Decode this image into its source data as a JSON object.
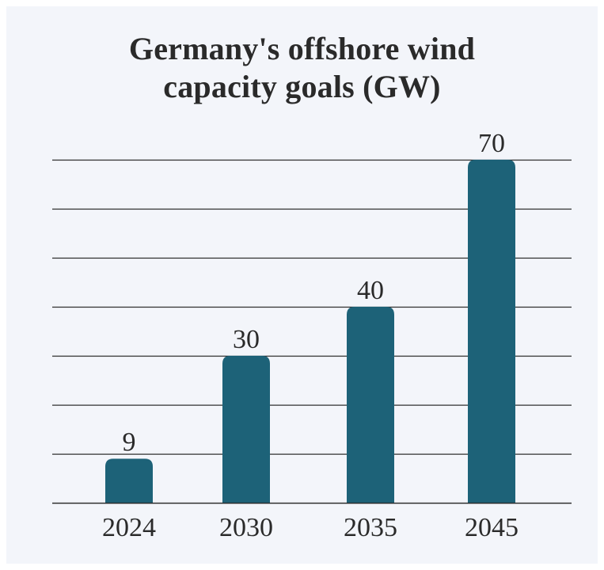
{
  "chart_data": {
    "type": "bar",
    "title_lines": [
      "Germany's offshore wind",
      "capacity goals (GW)"
    ],
    "categories": [
      "2024",
      "2030",
      "2035",
      "2045"
    ],
    "values": [
      9,
      30,
      40,
      70
    ],
    "xlabel": "",
    "ylabel": "",
    "ylim": [
      0,
      70
    ],
    "grid": true,
    "gridline_step": 10,
    "data_labels": true,
    "y_tick_labels_shown": false,
    "bar_color": "#1d6278",
    "background_color": "#f3f5fa"
  }
}
